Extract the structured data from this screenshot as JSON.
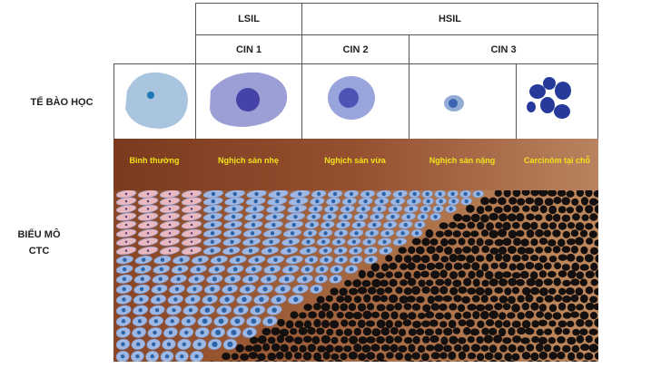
{
  "header": {
    "grades": [
      {
        "label": "LSIL"
      },
      {
        "label": "HSIL"
      }
    ],
    "cin": [
      {
        "label": "CIN 1"
      },
      {
        "label": "CIN 2"
      },
      {
        "label": "CIN 3"
      }
    ]
  },
  "rows": {
    "cytology_label": "TẾ BÀO HỌC",
    "epithelium_label_line1": "BIỂU MÔ",
    "epithelium_label_line2": "CTC"
  },
  "stages": [
    {
      "label": "Bình thường"
    },
    {
      "label": "Nghịch sản nhẹ"
    },
    {
      "label": "Nghịch sản vừa"
    },
    {
      "label": "Nghịch sản nặng"
    },
    {
      "label": "Carcinôm tại chỗ"
    }
  ],
  "colors": {
    "stage_text": "#f2e21a",
    "band_dark": "#7b3a1e",
    "band_light": "#b98360",
    "normal_cell": "#e9b7bd",
    "dysplastic_cell": "#9fb8e3",
    "nucleus": "#2b63a8",
    "carcinoma_cell": "#141010"
  }
}
